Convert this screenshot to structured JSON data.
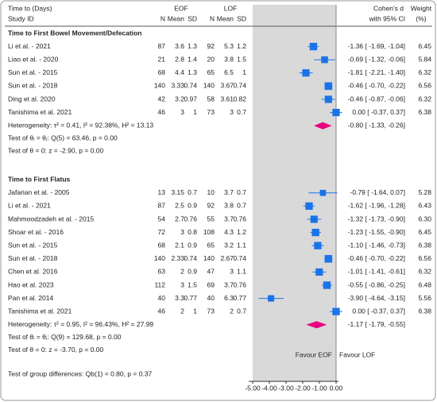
{
  "chart_data": {
    "type": "forest",
    "header": {
      "line1": "Time to (Days)",
      "line2": "Study ID",
      "group1": "EOF",
      "group2": "LOF",
      "effect1": "Cohen's d",
      "effect2": "with 95% CI",
      "weight1": "Weight",
      "weight2": "(%)"
    },
    "subheaders": [
      "N",
      "Mean",
      "SD",
      "N",
      "Mean",
      "SD"
    ],
    "groups": [
      {
        "title": "Time to First Bowel Movement/Defecation",
        "studies": [
          {
            "name": "Li et al. - 2021",
            "eof": [
              87,
              3.6,
              1.3
            ],
            "lof": [
              92,
              5.3,
              1.2
            ],
            "d": -1.36,
            "ci": [
              -1.69,
              -1.04
            ],
            "label": "-1.36 [ -1.69, -1.04]",
            "weight": 6.45
          },
          {
            "name": "Liao et al. - 2020",
            "eof": [
              21,
              2.8,
              1.4
            ],
            "lof": [
              20,
              3.8,
              1.5
            ],
            "d": -0.69,
            "ci": [
              -1.32,
              -0.06
            ],
            "label": "-0.69 [ -1.32, -0.06]",
            "weight": 5.84
          },
          {
            "name": "Sun et al. - 2015",
            "eof": [
              68,
              4.4,
              1.3
            ],
            "lof": [
              65,
              6.5,
              1
            ],
            "d": -1.81,
            "ci": [
              -2.21,
              -1.4
            ],
            "label": "-1.81 [ -2.21, -1.40]",
            "weight": 6.32
          },
          {
            "name": "Sun et al. - 2018",
            "eof": [
              140,
              3.33,
              0.74
            ],
            "lof": [
              140,
              3.67,
              0.74
            ],
            "d": -0.46,
            "ci": [
              -0.7,
              -0.22
            ],
            "label": "-0.46 [ -0.70, -0.22]",
            "weight": 6.56
          },
          {
            "name": "Ding et al. 2020",
            "eof": [
              42,
              3.2,
              0.97
            ],
            "lof": [
              58,
              3.61,
              0.82
            ],
            "d": -0.46,
            "ci": [
              -0.87,
              -0.06
            ],
            "label": "-0.46 [ -0.87, -0.06]",
            "weight": 6.32
          },
          {
            "name": "Tanishima et al. 2021",
            "eof": [
              46,
              3,
              1
            ],
            "lof": [
              73,
              3,
              0.7
            ],
            "d": 0,
            "ci": [
              -0.37,
              0.37
            ],
            "label": "0.00 [ -0.37, 0.37]",
            "weight": 6.38
          }
        ],
        "heterogeneity": "Heterogeneity: τ² = 0.41, I² = 92.38%, H² = 13.13",
        "overall": {
          "d": -0.8,
          "ci": [
            -1.33,
            -0.26
          ],
          "label": "-0.80 [ -1.33, -0.26]"
        },
        "tests": [
          "Test of θᵢ = θⱼ: Q(5) = 63.46, p = 0.00",
          "Test of θ = 0: z = -2.90, p = 0.00"
        ]
      },
      {
        "title": "Time to First Flatus",
        "studies": [
          {
            "name": "Jafarian et al. - 2005",
            "eof": [
              13,
              3.15,
              0.7
            ],
            "lof": [
              10,
              3.7,
              0.7
            ],
            "d": -0.79,
            "ci": [
              -1.64,
              0.07
            ],
            "label": "-0.79 [ -1.64, 0.07]",
            "weight": 5.28
          },
          {
            "name": "Li et al. - 2021",
            "eof": [
              87,
              2.5,
              0.9
            ],
            "lof": [
              92,
              3.8,
              0.7
            ],
            "d": -1.62,
            "ci": [
              -1.96,
              -1.28
            ],
            "label": "-1.62 [ -1.96, -1.28]",
            "weight": 6.43
          },
          {
            "name": "Mahmoodzadeh et al. - 2015",
            "eof": [
              54,
              2.7,
              0.76
            ],
            "lof": [
              55,
              3.7,
              0.76
            ],
            "d": -1.32,
            "ci": [
              -1.73,
              -0.9
            ],
            "label": "-1.32 [ -1.73, -0.90]",
            "weight": 6.3,
            "weight_label": "6.30"
          },
          {
            "name": "Shoar et al. - 2016",
            "eof": [
              72,
              3,
              0.8
            ],
            "lof": [
              108,
              4.3,
              1.2
            ],
            "d": -1.23,
            "ci": [
              -1.55,
              -0.9
            ],
            "label": "-1.23 [ -1.55, -0.90]",
            "weight": 6.45
          },
          {
            "name": "Sun et al. - 2015",
            "eof": [
              68,
              2.1,
              0.9
            ],
            "lof": [
              65,
              3.2,
              1.1
            ],
            "d": -1.1,
            "ci": [
              -1.46,
              -0.73
            ],
            "label": "-1.10 [ -1.46, -0.73]",
            "weight": 6.38
          },
          {
            "name": "Sun et al. - 2018",
            "eof": [
              140,
              2.33,
              0.74
            ],
            "lof": [
              140,
              2.67,
              0.74
            ],
            "d": -0.46,
            "ci": [
              -0.7,
              -0.22
            ],
            "label": "-0.46 [ -0.70, -0.22]",
            "weight": 6.56
          },
          {
            "name": "Chen et al. 2016",
            "eof": [
              63,
              2,
              0.9
            ],
            "lof": [
              47,
              3,
              1.1
            ],
            "d": -1.01,
            "ci": [
              -1.41,
              -0.61
            ],
            "label": "-1.01 [ -1.41, -0.61]",
            "weight": 6.32
          },
          {
            "name": "Hao et al. 2023",
            "eof": [
              112,
              3,
              1.5
            ],
            "lof": [
              69,
              3.7,
              0.76
            ],
            "d": -0.55,
            "ci": [
              -0.86,
              -0.25
            ],
            "label": "-0.55 [ -0.86, -0.25]",
            "weight": 6.48
          },
          {
            "name": "Pan et al. 2014",
            "eof": [
              40,
              3.3,
              0.77
            ],
            "lof": [
              40,
              6.3,
              0.77
            ],
            "d": -3.9,
            "ci": [
              -4.64,
              -3.15
            ],
            "label": "-3.90 [ -4.64, -3.15]",
            "weight": 5.56
          },
          {
            "name": "Tanishima et al. 2021",
            "eof": [
              46,
              2,
              1
            ],
            "lof": [
              73,
              2,
              0.7
            ],
            "d": 0,
            "ci": [
              -0.37,
              0.37
            ],
            "label": "0.00 [ -0.37, 0.37]",
            "weight": 6.38
          }
        ],
        "heterogeneity": "Heterogeneity: τ² = 0.95, I² = 96.43%, H² = 27.99",
        "overall": {
          "d": -1.17,
          "ci": [
            -1.79,
            -0.55
          ],
          "label": "-1.17 [ -1.79, -0.55]"
        },
        "tests": [
          "Test of θᵢ = θⱼ: Q(9) = 129.68, p = 0.00",
          "Test of θ = 0: z = -3.70, p = 0.00"
        ]
      }
    ],
    "favour_left": "Favour EOF",
    "favour_right": "Favour LOF",
    "group_test": "Test of group differences: Qb(1) = 0.80, p = 0.37",
    "xlim": [
      -5,
      0
    ],
    "xticks": [
      {
        "value": -5,
        "label": "-5.00"
      },
      {
        "value": -4,
        "label": "-4.00"
      },
      {
        "value": -3,
        "label": "-3.00"
      },
      {
        "value": -2,
        "label": "-2.00"
      },
      {
        "value": -1,
        "label": "-1.00"
      },
      {
        "value": 0,
        "label": "0.00"
      }
    ],
    "study_color": "#1a73e8",
    "overall_color": "#e6007e",
    "title_color": "#e6007e",
    "test_color": "#1aa37a"
  }
}
